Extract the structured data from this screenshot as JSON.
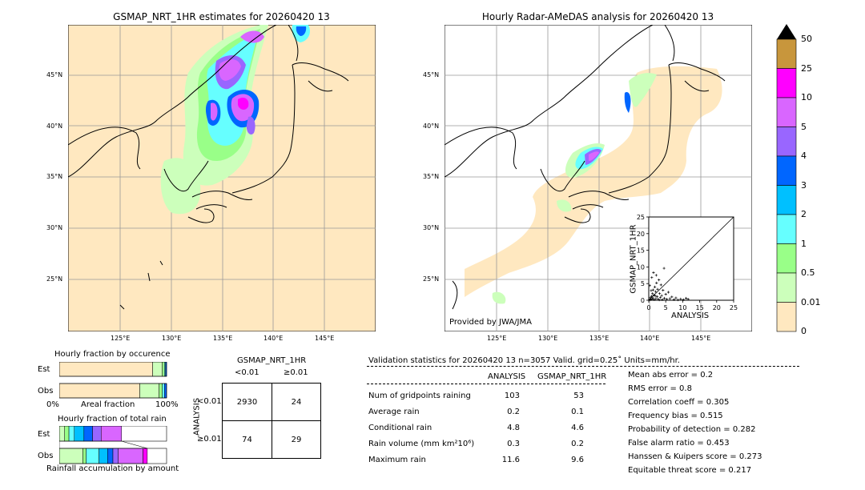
{
  "left_map": {
    "title": "GSMAP_NRT_1HR estimates for 20260420 13",
    "lat_ticks": [
      "45°N",
      "40°N",
      "35°N",
      "30°N",
      "25°N"
    ],
    "lon_ticks": [
      "125°E",
      "130°E",
      "135°E",
      "140°E",
      "145°E"
    ]
  },
  "right_map": {
    "title": "Hourly Radar-AMeDAS analysis for 20260420 13",
    "lat_ticks": [
      "45°N",
      "40°N",
      "35°N",
      "30°N",
      "25°N"
    ],
    "lon_ticks": [
      "125°E",
      "130°E",
      "135°E",
      "140°E",
      "145°E"
    ],
    "credit": "Provided by JWA/JMA"
  },
  "colorbar": {
    "labels": [
      "50",
      "25",
      "10",
      "5",
      "4",
      "3",
      "2",
      "1",
      "0.5",
      "0.01",
      "0"
    ],
    "colors": [
      "#c8963c",
      "#ff00ff",
      "#d966ff",
      "#9966ff",
      "#0066ff",
      "#00c0ff",
      "#66ffff",
      "#99ff88",
      "#ccffbb",
      "#ffe8c0"
    ],
    "extend_color": "#000000"
  },
  "chart_data": [
    {
      "type": "scatter",
      "title": "",
      "xlabel": "ANALYSIS",
      "ylabel": "GSMAP_NRT_1HR",
      "xlim": [
        0,
        25
      ],
      "ylim": [
        0,
        25
      ],
      "x_ticks": [
        "0",
        "5",
        "10",
        "15",
        "20",
        "25"
      ],
      "y_ticks": [
        "0",
        "5",
        "10",
        "15",
        "20",
        "25"
      ],
      "points": [
        [
          0.2,
          0.1
        ],
        [
          0.4,
          0.3
        ],
        [
          0.5,
          0.8
        ],
        [
          0.6,
          0.2
        ],
        [
          0.8,
          1.2
        ],
        [
          1.0,
          0.4
        ],
        [
          1.1,
          2.0
        ],
        [
          1.2,
          0.7
        ],
        [
          1.3,
          3.1
        ],
        [
          1.5,
          1.6
        ],
        [
          1.6,
          0.2
        ],
        [
          1.8,
          4.0
        ],
        [
          2.0,
          2.6
        ],
        [
          2.1,
          0.5
        ],
        [
          2.3,
          5.2
        ],
        [
          2.5,
          1.1
        ],
        [
          2.6,
          3.3
        ],
        [
          2.8,
          0.3
        ],
        [
          3.0,
          6.1
        ],
        [
          3.2,
          2.0
        ],
        [
          3.4,
          0.8
        ],
        [
          3.6,
          4.6
        ],
        [
          3.8,
          1.4
        ],
        [
          4.0,
          0.2
        ],
        [
          4.2,
          3.0
        ],
        [
          4.5,
          9.6
        ],
        [
          4.6,
          0.6
        ],
        [
          5.0,
          1.8
        ],
        [
          5.3,
          0.3
        ],
        [
          5.8,
          2.4
        ],
        [
          6.2,
          0.5
        ],
        [
          6.8,
          1.0
        ],
        [
          7.4,
          0.2
        ],
        [
          8.0,
          0.7
        ],
        [
          8.6,
          0.1
        ],
        [
          9.4,
          0.4
        ],
        [
          10.2,
          0.2
        ],
        [
          11.0,
          0.6
        ],
        [
          11.6,
          0.3
        ],
        [
          0.3,
          4.4
        ],
        [
          0.9,
          6.8
        ],
        [
          1.4,
          8.3
        ],
        [
          0.7,
          2.9
        ],
        [
          2.2,
          7.5
        ],
        [
          3.1,
          0.1
        ],
        [
          1.9,
          1.3
        ]
      ]
    },
    {
      "type": "bar",
      "title": "Hourly fraction by occurence",
      "xlabel": "Areal fraction",
      "x_ticks": [
        "0%",
        "100%"
      ],
      "categories": [
        "Est",
        "Obs"
      ],
      "series": [
        {
          "name": "<0.01",
          "values": [
            0.87,
            0.75
          ],
          "color": "#ffe8c0"
        },
        {
          "name": "0.01-0.5",
          "values": [
            0.09,
            0.18
          ],
          "color": "#ccffbb"
        },
        {
          "name": "0.5-1",
          "values": [
            0.02,
            0.03
          ],
          "color": "#99ff88"
        },
        {
          "name": "1-2",
          "values": [
            0.01,
            0.02
          ],
          "color": "#66ffff"
        },
        {
          "name": "2-",
          "values": [
            0.01,
            0.02
          ],
          "color": "#0066ff"
        }
      ]
    },
    {
      "type": "bar",
      "title": "Hourly fraction of total rain",
      "xlabel": "Rainfall accumulation by amount",
      "categories": [
        "Est",
        "Obs"
      ],
      "series": [
        {
          "name": "0.01-0.5",
          "values": [
            0.05,
            0.22
          ],
          "color": "#ccffbb"
        },
        {
          "name": "0.5-1",
          "values": [
            0.04,
            0.03
          ],
          "color": "#99ff88"
        },
        {
          "name": "1-2",
          "values": [
            0.05,
            0.12
          ],
          "color": "#66ffff"
        },
        {
          "name": "2-3",
          "values": [
            0.09,
            0.08
          ],
          "color": "#00c0ff"
        },
        {
          "name": "3-4",
          "values": [
            0.08,
            0.05
          ],
          "color": "#0066ff"
        },
        {
          "name": "4-5",
          "values": [
            0.08,
            0.05
          ],
          "color": "#9966ff"
        },
        {
          "name": "5-10",
          "values": [
            0.19,
            0.23
          ],
          "color": "#d966ff"
        },
        {
          "name": "10-25",
          "values": [
            0.0,
            0.04
          ],
          "color": "#ff00ff"
        }
      ]
    }
  ],
  "contingency": {
    "title": "GSMAP_NRT_1HR",
    "col_labels": [
      "<0.01",
      "≥0.01"
    ],
    "row_axis": "ANALYSIS",
    "row_labels": [
      "<0.01",
      "≥0.01"
    ],
    "cells": [
      [
        "2930",
        "24"
      ],
      [
        "74",
        "29"
      ]
    ]
  },
  "validation": {
    "header": "Validation statistics for 20260420 13  n=3057 Valid. grid=0.25˚ Units=mm/hr.",
    "col_analysis": "ANALYSIS",
    "col_gsmap": "GSMAP_NRT_1HR",
    "rows": [
      {
        "label": "Num of gridpoints raining",
        "analysis": "103",
        "gsmap": "53"
      },
      {
        "label": "Average rain",
        "analysis": "0.2",
        "gsmap": "0.1"
      },
      {
        "label": "Conditional rain",
        "analysis": "4.8",
        "gsmap": "4.6"
      },
      {
        "label": "Rain volume (mm km²10⁶)",
        "analysis": "0.3",
        "gsmap": "0.2"
      },
      {
        "label": "Maximum rain",
        "analysis": "11.6",
        "gsmap": "9.6"
      }
    ],
    "scores": [
      "Mean abs error =    0.2",
      "RMS error =    0.8",
      "Correlation coeff =  0.305",
      "Frequency bias =  0.515",
      "Probability of detection =  0.282",
      "False alarm ratio =  0.453",
      "Hanssen & Kuipers score =  0.273",
      "Equitable threat score =  0.217"
    ]
  }
}
